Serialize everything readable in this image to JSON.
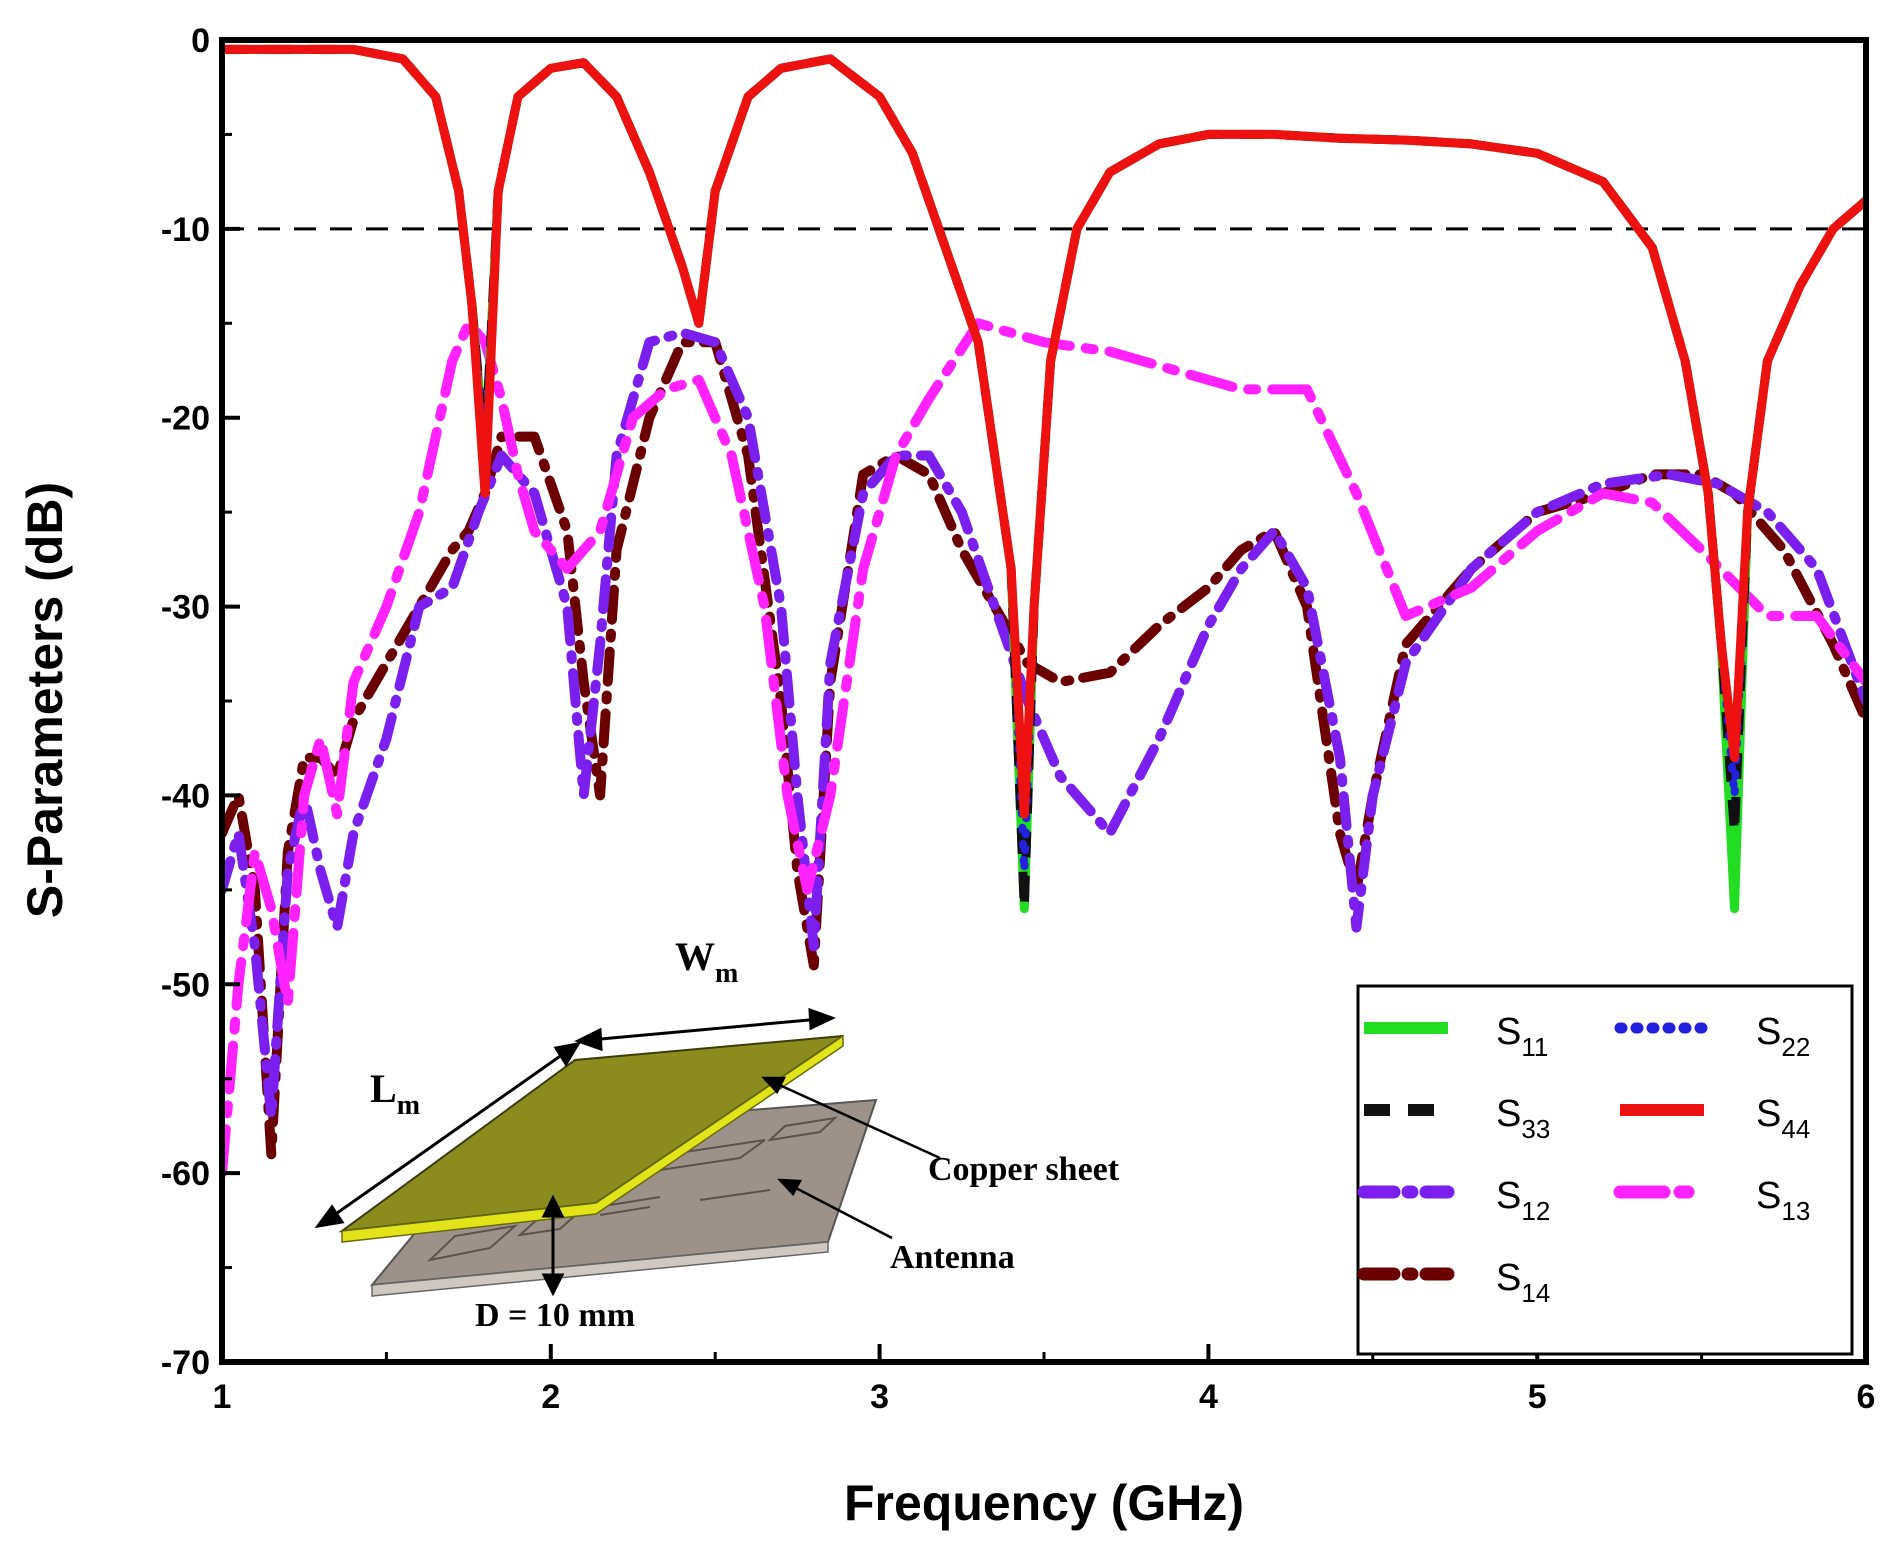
{
  "chart_data": {
    "type": "line",
    "xlabel": "Frequency (GHz)",
    "ylabel": "S-Parameters (dB)",
    "xlim": [
      1,
      6
    ],
    "ylim": [
      -70,
      0
    ],
    "xticks": [
      1,
      2,
      3,
      4,
      5,
      6
    ],
    "yticks": [
      0,
      -10,
      -20,
      -30,
      -40,
      -50,
      -60,
      -70
    ],
    "reference_line": {
      "y": -10,
      "style": "dashed",
      "color": "#000000"
    },
    "legend_position": "bottom-right",
    "series": [
      {
        "name": "S11",
        "base": "S",
        "sub": "11",
        "color": "#22dd22",
        "style": "solid",
        "x": [
          1,
          1.2,
          1.4,
          1.55,
          1.65,
          1.72,
          1.76,
          1.8,
          1.84,
          1.9,
          2.0,
          2.1,
          2.2,
          2.3,
          2.4,
          2.45,
          2.5,
          2.6,
          2.7,
          2.85,
          3.0,
          3.1,
          3.2,
          3.3,
          3.4,
          3.44,
          3.47,
          3.52,
          3.6,
          3.7,
          3.85,
          4.0,
          4.2,
          4.4,
          4.6,
          4.8,
          5.0,
          5.2,
          5.35,
          5.45,
          5.52,
          5.56,
          5.6,
          5.64,
          5.7,
          5.8,
          5.9,
          6.0
        ],
        "y": [
          -0.5,
          -0.5,
          -0.5,
          -1,
          -3,
          -8,
          -14,
          -22,
          -8,
          -3,
          -1.5,
          -1.2,
          -3,
          -7,
          -12,
          -15,
          -8,
          -3,
          -1.5,
          -1,
          -3,
          -6,
          -11,
          -16,
          -28,
          -46,
          -30,
          -17,
          -10,
          -7,
          -5.5,
          -5,
          -5,
          -5.2,
          -5.3,
          -5.5,
          -6,
          -7.5,
          -11,
          -17,
          -24,
          -32,
          -46,
          -25,
          -17,
          -13,
          -10,
          -8.5
        ]
      },
      {
        "name": "S22",
        "base": "S",
        "sub": "22",
        "color": "#2222dd",
        "style": "dotted",
        "x": [
          1,
          1.2,
          1.4,
          1.55,
          1.65,
          1.72,
          1.76,
          1.8,
          1.84,
          1.9,
          2.0,
          2.1,
          2.2,
          2.3,
          2.4,
          2.45,
          2.5,
          2.6,
          2.7,
          2.85,
          3.0,
          3.1,
          3.2,
          3.3,
          3.4,
          3.44,
          3.47,
          3.52,
          3.6,
          3.7,
          3.85,
          4.0,
          4.2,
          4.4,
          4.6,
          4.8,
          5.0,
          5.2,
          5.35,
          5.45,
          5.52,
          5.56,
          5.6,
          5.64,
          5.7,
          5.8,
          5.9,
          6.0
        ],
        "y": [
          -0.5,
          -0.5,
          -0.5,
          -1,
          -3,
          -8,
          -14,
          -22,
          -8,
          -3,
          -1.5,
          -1.2,
          -3,
          -7,
          -12,
          -15,
          -8,
          -3,
          -1.5,
          -1,
          -3,
          -6,
          -11,
          -16,
          -28,
          -44,
          -30,
          -17,
          -10,
          -7,
          -5.5,
          -5,
          -5,
          -5.2,
          -5.3,
          -5.5,
          -6,
          -7.5,
          -11,
          -17,
          -24,
          -32,
          -40,
          -25,
          -17,
          -13,
          -10,
          -8.5
        ]
      },
      {
        "name": "S33",
        "base": "S",
        "sub": "33",
        "color": "#111111",
        "style": "dashed",
        "x": [
          1,
          1.2,
          1.4,
          1.55,
          1.65,
          1.72,
          1.76,
          1.8,
          1.84,
          1.9,
          2.0,
          2.1,
          2.2,
          2.3,
          2.4,
          2.45,
          2.5,
          2.6,
          2.7,
          2.85,
          3.0,
          3.1,
          3.2,
          3.3,
          3.4,
          3.44,
          3.47,
          3.52,
          3.6,
          3.7,
          3.85,
          4.0,
          4.2,
          4.4,
          4.6,
          4.8,
          5.0,
          5.2,
          5.35,
          5.45,
          5.52,
          5.56,
          5.6,
          5.64,
          5.7,
          5.8,
          5.9,
          6.0
        ],
        "y": [
          -0.5,
          -0.5,
          -0.5,
          -1,
          -3,
          -8,
          -14,
          -22,
          -8,
          -3,
          -1.5,
          -1.2,
          -3,
          -7,
          -12,
          -15,
          -8,
          -3,
          -1.5,
          -1,
          -3,
          -6,
          -11,
          -16,
          -28,
          -46,
          -30,
          -17,
          -10,
          -7,
          -5.5,
          -5,
          -5,
          -5.2,
          -5.3,
          -5.5,
          -6,
          -7.5,
          -11,
          -17,
          -24,
          -32,
          -42,
          -25,
          -17,
          -13,
          -10,
          -8.5
        ]
      },
      {
        "name": "S44",
        "base": "S",
        "sub": "44",
        "color": "#ee1111",
        "style": "solid",
        "x": [
          1,
          1.2,
          1.4,
          1.55,
          1.65,
          1.72,
          1.76,
          1.8,
          1.84,
          1.9,
          2.0,
          2.1,
          2.2,
          2.3,
          2.4,
          2.45,
          2.5,
          2.6,
          2.7,
          2.85,
          3.0,
          3.1,
          3.2,
          3.3,
          3.4,
          3.44,
          3.47,
          3.52,
          3.6,
          3.7,
          3.85,
          4.0,
          4.2,
          4.4,
          4.6,
          4.8,
          5.0,
          5.2,
          5.35,
          5.45,
          5.52,
          5.56,
          5.6,
          5.64,
          5.7,
          5.8,
          5.9,
          6.0
        ],
        "y": [
          -0.5,
          -0.5,
          -0.5,
          -1,
          -3,
          -8,
          -14,
          -24,
          -8,
          -3,
          -1.5,
          -1.2,
          -3,
          -7,
          -12,
          -15,
          -8,
          -3,
          -1.5,
          -1,
          -3,
          -6,
          -11,
          -16,
          -28,
          -41,
          -30,
          -17,
          -10,
          -7,
          -5.5,
          -5,
          -5,
          -5.2,
          -5.3,
          -5.5,
          -6,
          -7.5,
          -11,
          -17,
          -24,
          -32,
          -38,
          -25,
          -17,
          -13,
          -10,
          -8.5
        ]
      },
      {
        "name": "S12",
        "base": "S",
        "sub": "12",
        "color": "#7a1fee",
        "style": "dashdot",
        "x": [
          1,
          1.05,
          1.1,
          1.15,
          1.2,
          1.25,
          1.3,
          1.35,
          1.4,
          1.5,
          1.6,
          1.7,
          1.78,
          1.85,
          1.95,
          2.05,
          2.1,
          2.15,
          2.2,
          2.3,
          2.4,
          2.5,
          2.6,
          2.7,
          2.75,
          2.8,
          2.85,
          2.95,
          3.05,
          3.15,
          3.25,
          3.35,
          3.45,
          3.55,
          3.7,
          3.85,
          4.0,
          4.1,
          4.2,
          4.3,
          4.4,
          4.45,
          4.5,
          4.6,
          4.8,
          5.0,
          5.2,
          5.4,
          5.55,
          5.7,
          5.85,
          6.0
        ],
        "y": [
          -45,
          -42,
          -48,
          -57,
          -44,
          -40,
          -44,
          -47,
          -42,
          -37,
          -30,
          -29,
          -25,
          -22,
          -24,
          -30,
          -40,
          -32,
          -22,
          -16,
          -15.5,
          -16,
          -20,
          -30,
          -40,
          -48,
          -33,
          -24,
          -22,
          -22,
          -25,
          -30,
          -35,
          -39,
          -42,
          -37,
          -31,
          -28,
          -26,
          -29,
          -38,
          -47,
          -40,
          -33,
          -28,
          -25,
          -23.5,
          -23,
          -23.5,
          -25,
          -28,
          -35
        ]
      },
      {
        "name": "S13",
        "base": "S",
        "sub": "13",
        "color": "#ff22ff",
        "style": "longdash",
        "x": [
          1,
          1.05,
          1.1,
          1.15,
          1.2,
          1.25,
          1.3,
          1.35,
          1.4,
          1.5,
          1.6,
          1.7,
          1.75,
          1.8,
          1.85,
          1.9,
          1.95,
          2.05,
          2.15,
          2.25,
          2.35,
          2.45,
          2.55,
          2.65,
          2.72,
          2.78,
          2.85,
          2.95,
          3.05,
          3.15,
          3.3,
          3.5,
          3.7,
          3.9,
          4.1,
          4.3,
          4.45,
          4.6,
          4.8,
          5.0,
          5.2,
          5.35,
          5.5,
          5.7,
          5.85,
          6.0
        ],
        "y": [
          -60,
          -50,
          -43,
          -46,
          -51,
          -40,
          -37,
          -41,
          -34,
          -30,
          -25,
          -17,
          -15,
          -16,
          -19,
          -23,
          -26,
          -28,
          -26,
          -20,
          -18.5,
          -18,
          -22,
          -30,
          -40,
          -45,
          -40,
          -28,
          -22,
          -19,
          -15,
          -16,
          -16.5,
          -17.5,
          -18.5,
          -18.5,
          -24,
          -30.5,
          -29,
          -26,
          -24,
          -24.5,
          -27,
          -30.5,
          -30.5,
          -34
        ]
      },
      {
        "name": "S14",
        "base": "S",
        "sub": "14",
        "color": "#6b0000",
        "style": "dashdot",
        "x": [
          1,
          1.05,
          1.1,
          1.15,
          1.2,
          1.25,
          1.3,
          1.35,
          1.4,
          1.5,
          1.6,
          1.7,
          1.75,
          1.8,
          1.85,
          1.95,
          2.05,
          2.1,
          2.15,
          2.2,
          2.3,
          2.4,
          2.5,
          2.6,
          2.7,
          2.75,
          2.8,
          2.85,
          2.95,
          3.05,
          3.15,
          3.25,
          3.35,
          3.45,
          3.55,
          3.7,
          3.85,
          4.0,
          4.1,
          4.2,
          4.3,
          4.4,
          4.45,
          4.5,
          4.6,
          4.8,
          5.0,
          5.2,
          5.35,
          5.5,
          5.6,
          5.75,
          5.9,
          6.0
        ],
        "y": [
          -42,
          -40,
          -45,
          -59,
          -43,
          -38,
          -38,
          -39,
          -36,
          -33,
          -30,
          -27,
          -26,
          -24,
          -21,
          -21,
          -26,
          -34,
          -40,
          -27,
          -20,
          -16,
          -16,
          -22,
          -35,
          -44,
          -49,
          -34,
          -23,
          -22,
          -23,
          -27,
          -30,
          -33,
          -34,
          -33.5,
          -31,
          -29,
          -27,
          -26,
          -30,
          -42,
          -45,
          -40,
          -32,
          -28,
          -25,
          -24,
          -23,
          -23,
          -24,
          -27,
          -32,
          -36
        ]
      }
    ],
    "inset": {
      "width_label": "W",
      "width_sub": "m",
      "length_label": "L",
      "length_sub": "m",
      "copper_label": "Copper sheet",
      "antenna_label": "Antenna",
      "gap_label": "D = 10 mm",
      "copper_color": "#8c8c1e",
      "copper_edge_color": "#e3e31a",
      "antenna_color": "#9c928a"
    }
  }
}
